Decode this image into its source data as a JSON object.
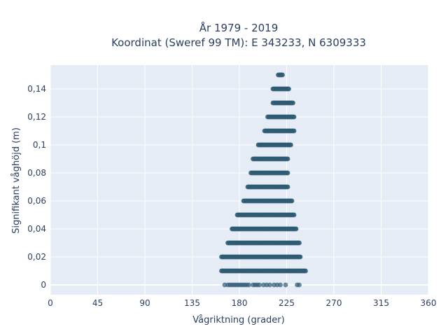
{
  "chart_data": {
    "type": "scatter",
    "title_line1": "År 1979 - 2019",
    "title_line2": "Koordinat (Sweref 99 TM): E 343233, N 6309333",
    "xlabel": "Vågriktning (grader)",
    "ylabel": "Signifikant våghöjd (m)",
    "xlim": [
      0,
      360
    ],
    "ylim": [
      -0.007,
      0.157
    ],
    "xticks": [
      0,
      45,
      90,
      135,
      180,
      225,
      270,
      315,
      360
    ],
    "xtick_labels": [
      "0",
      "45",
      "90",
      "135",
      "180",
      "225",
      "270",
      "315",
      "360"
    ],
    "yticks": [
      0,
      0.02,
      0.04,
      0.06,
      0.08,
      0.1,
      0.12,
      0.14
    ],
    "ytick_labels": [
      "0",
      "0,02",
      "0,04",
      "0,06",
      "0,08",
      "0,1",
      "0,12",
      "0,14"
    ],
    "grid": true,
    "legend": "none",
    "background_color": "#e5ecf6",
    "marker_color": "#2f5a73",
    "rows": [
      {
        "y": 0.15,
        "x_min": 217,
        "x_max": 221
      },
      {
        "y": 0.14,
        "x_min": 212,
        "x_max": 227
      },
      {
        "y": 0.13,
        "x_min": 212,
        "x_max": 231
      },
      {
        "y": 0.12,
        "x_min": 207,
        "x_max": 232
      },
      {
        "y": 0.11,
        "x_min": 204,
        "x_max": 232
      },
      {
        "y": 0.1,
        "x_min": 198,
        "x_max": 229
      },
      {
        "y": 0.09,
        "x_min": 193,
        "x_max": 226
      },
      {
        "y": 0.08,
        "x_min": 191,
        "x_max": 226
      },
      {
        "y": 0.07,
        "x_min": 188,
        "x_max": 226
      },
      {
        "y": 0.06,
        "x_min": 184,
        "x_max": 230
      },
      {
        "y": 0.05,
        "x_min": 178,
        "x_max": 232
      },
      {
        "y": 0.04,
        "x_min": 173,
        "x_max": 234
      },
      {
        "y": 0.03,
        "x_min": 169,
        "x_max": 237
      },
      {
        "y": 0.02,
        "x_min": 163,
        "x_max": 238
      },
      {
        "y": 0.01,
        "x_min": 163,
        "x_max": 243
      }
    ],
    "zero_row": {
      "y": 0,
      "x_values": [
        166,
        169,
        171,
        173,
        175,
        177,
        179,
        181,
        183,
        185,
        187,
        189,
        193,
        195,
        197,
        199,
        203,
        206,
        209,
        213,
        216,
        219,
        224,
        235,
        237
      ]
    }
  }
}
